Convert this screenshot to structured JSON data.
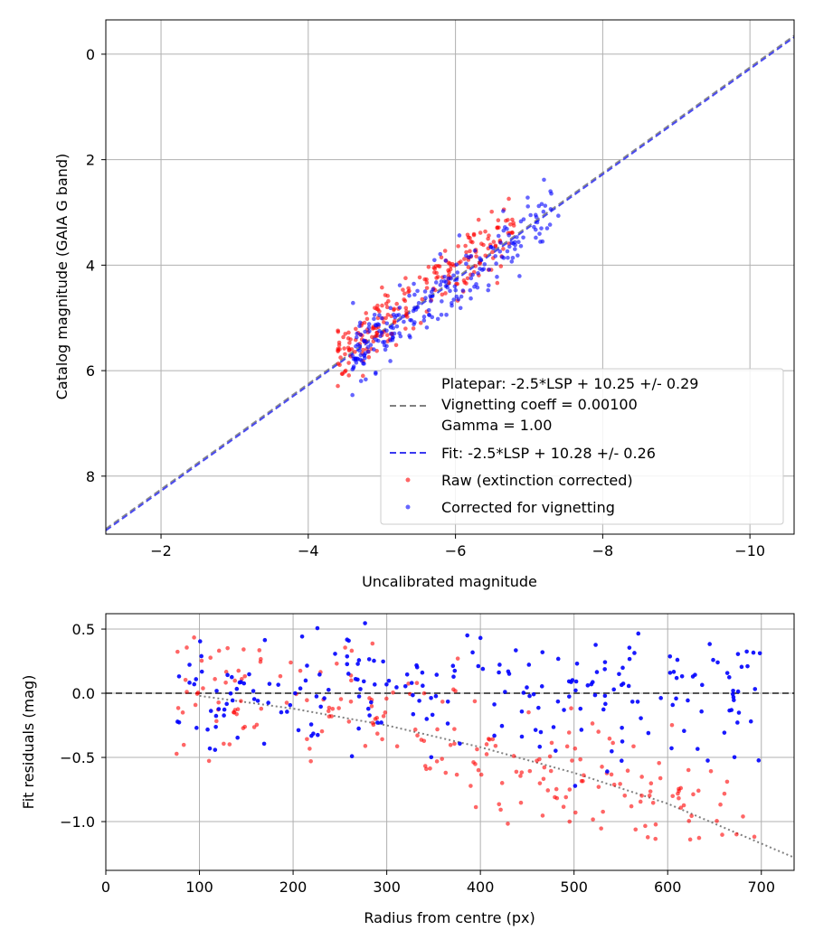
{
  "chart_data": [
    {
      "type": "scatter",
      "xlabel": "Uncalibrated magnitude",
      "ylabel": "Catalog magnitude (GAIA G band)",
      "xlim": [
        -1.25,
        -10.6
      ],
      "ylim": [
        9.1,
        -0.65
      ],
      "x_inverted": true,
      "y_inverted": true,
      "grid": true,
      "x_ticks": [
        -2,
        -4,
        -6,
        -8,
        -10
      ],
      "x_tick_labels": [
        "−2",
        "−4",
        "−6",
        "−8",
        "−10"
      ],
      "y_ticks": [
        0,
        2,
        4,
        6,
        8
      ],
      "y_tick_labels": [
        "0",
        "2",
        "4",
        "6",
        "8"
      ],
      "legend_position": "lower-right",
      "legend": {
        "platepar_lines": [
          "Platepar: -2.5*LSP + 10.25 +/- 0.29",
          "Vignetting coeff = 0.00100",
          "Gamma = 1.00"
        ],
        "fit_label": "Fit: -2.5*LSP + 10.28 +/- 0.26",
        "raw_label": "Raw (extinction corrected)",
        "corrected_label": "Corrected for vignetting"
      },
      "lines": [
        {
          "kind": "platepar",
          "slope": 1,
          "intercept": 10.25,
          "color": "#808080",
          "style": "dashed"
        },
        {
          "kind": "fit",
          "slope": 1,
          "intercept": 10.28,
          "color": "#3a3af0",
          "style": "dashed"
        }
      ],
      "colors": {
        "raw": "#ff0000",
        "corrected": "#0000ff"
      },
      "series": [
        {
          "name": "Raw (extinction corrected)",
          "cluster": {
            "x_range": [
              -4.4,
              -6.8
            ],
            "y_center_offset": 10.1,
            "n": 230
          }
        },
        {
          "name": "Corrected for vignetting",
          "cluster": {
            "x_range": [
              -4.6,
              -7.4
            ],
            "y_center_offset": 10.3,
            "n": 230
          }
        }
      ]
    },
    {
      "type": "scatter",
      "xlabel": "Radius from centre (px)",
      "ylabel": "Fit residuals (mag)",
      "xlim": [
        0,
        735
      ],
      "ylim": [
        -1.38,
        0.62
      ],
      "grid": true,
      "x_ticks": [
        0,
        100,
        200,
        300,
        400,
        500,
        600,
        700
      ],
      "x_tick_labels": [
        "0",
        "100",
        "200",
        "300",
        "400",
        "500",
        "600",
        "700"
      ],
      "y_ticks": [
        0.5,
        0.0,
        -0.5,
        -1.0
      ],
      "y_tick_labels": [
        "0.5",
        "0.0",
        "−0.5",
        "−1.0"
      ],
      "zero_line": {
        "y": 0,
        "color": "#555555",
        "style": "dashed"
      },
      "vignetting_curve": {
        "color": "#808080",
        "style": "dotted",
        "points": [
          [
            100,
            -0.02
          ],
          [
            200,
            -0.12
          ],
          [
            300,
            -0.25
          ],
          [
            400,
            -0.42
          ],
          [
            500,
            -0.62
          ],
          [
            600,
            -0.86
          ],
          [
            735,
            -1.28
          ]
        ]
      },
      "colors": {
        "raw": "#ff0000",
        "corrected": "#0000ff"
      },
      "series": [
        {
          "name": "Raw (extinction corrected)",
          "cluster": {
            "x_range": [
              75,
              700
            ],
            "n": 230
          }
        },
        {
          "name": "Corrected for vignetting",
          "cluster": {
            "x_range": [
              75,
              700
            ],
            "n": 230
          }
        }
      ]
    }
  ]
}
